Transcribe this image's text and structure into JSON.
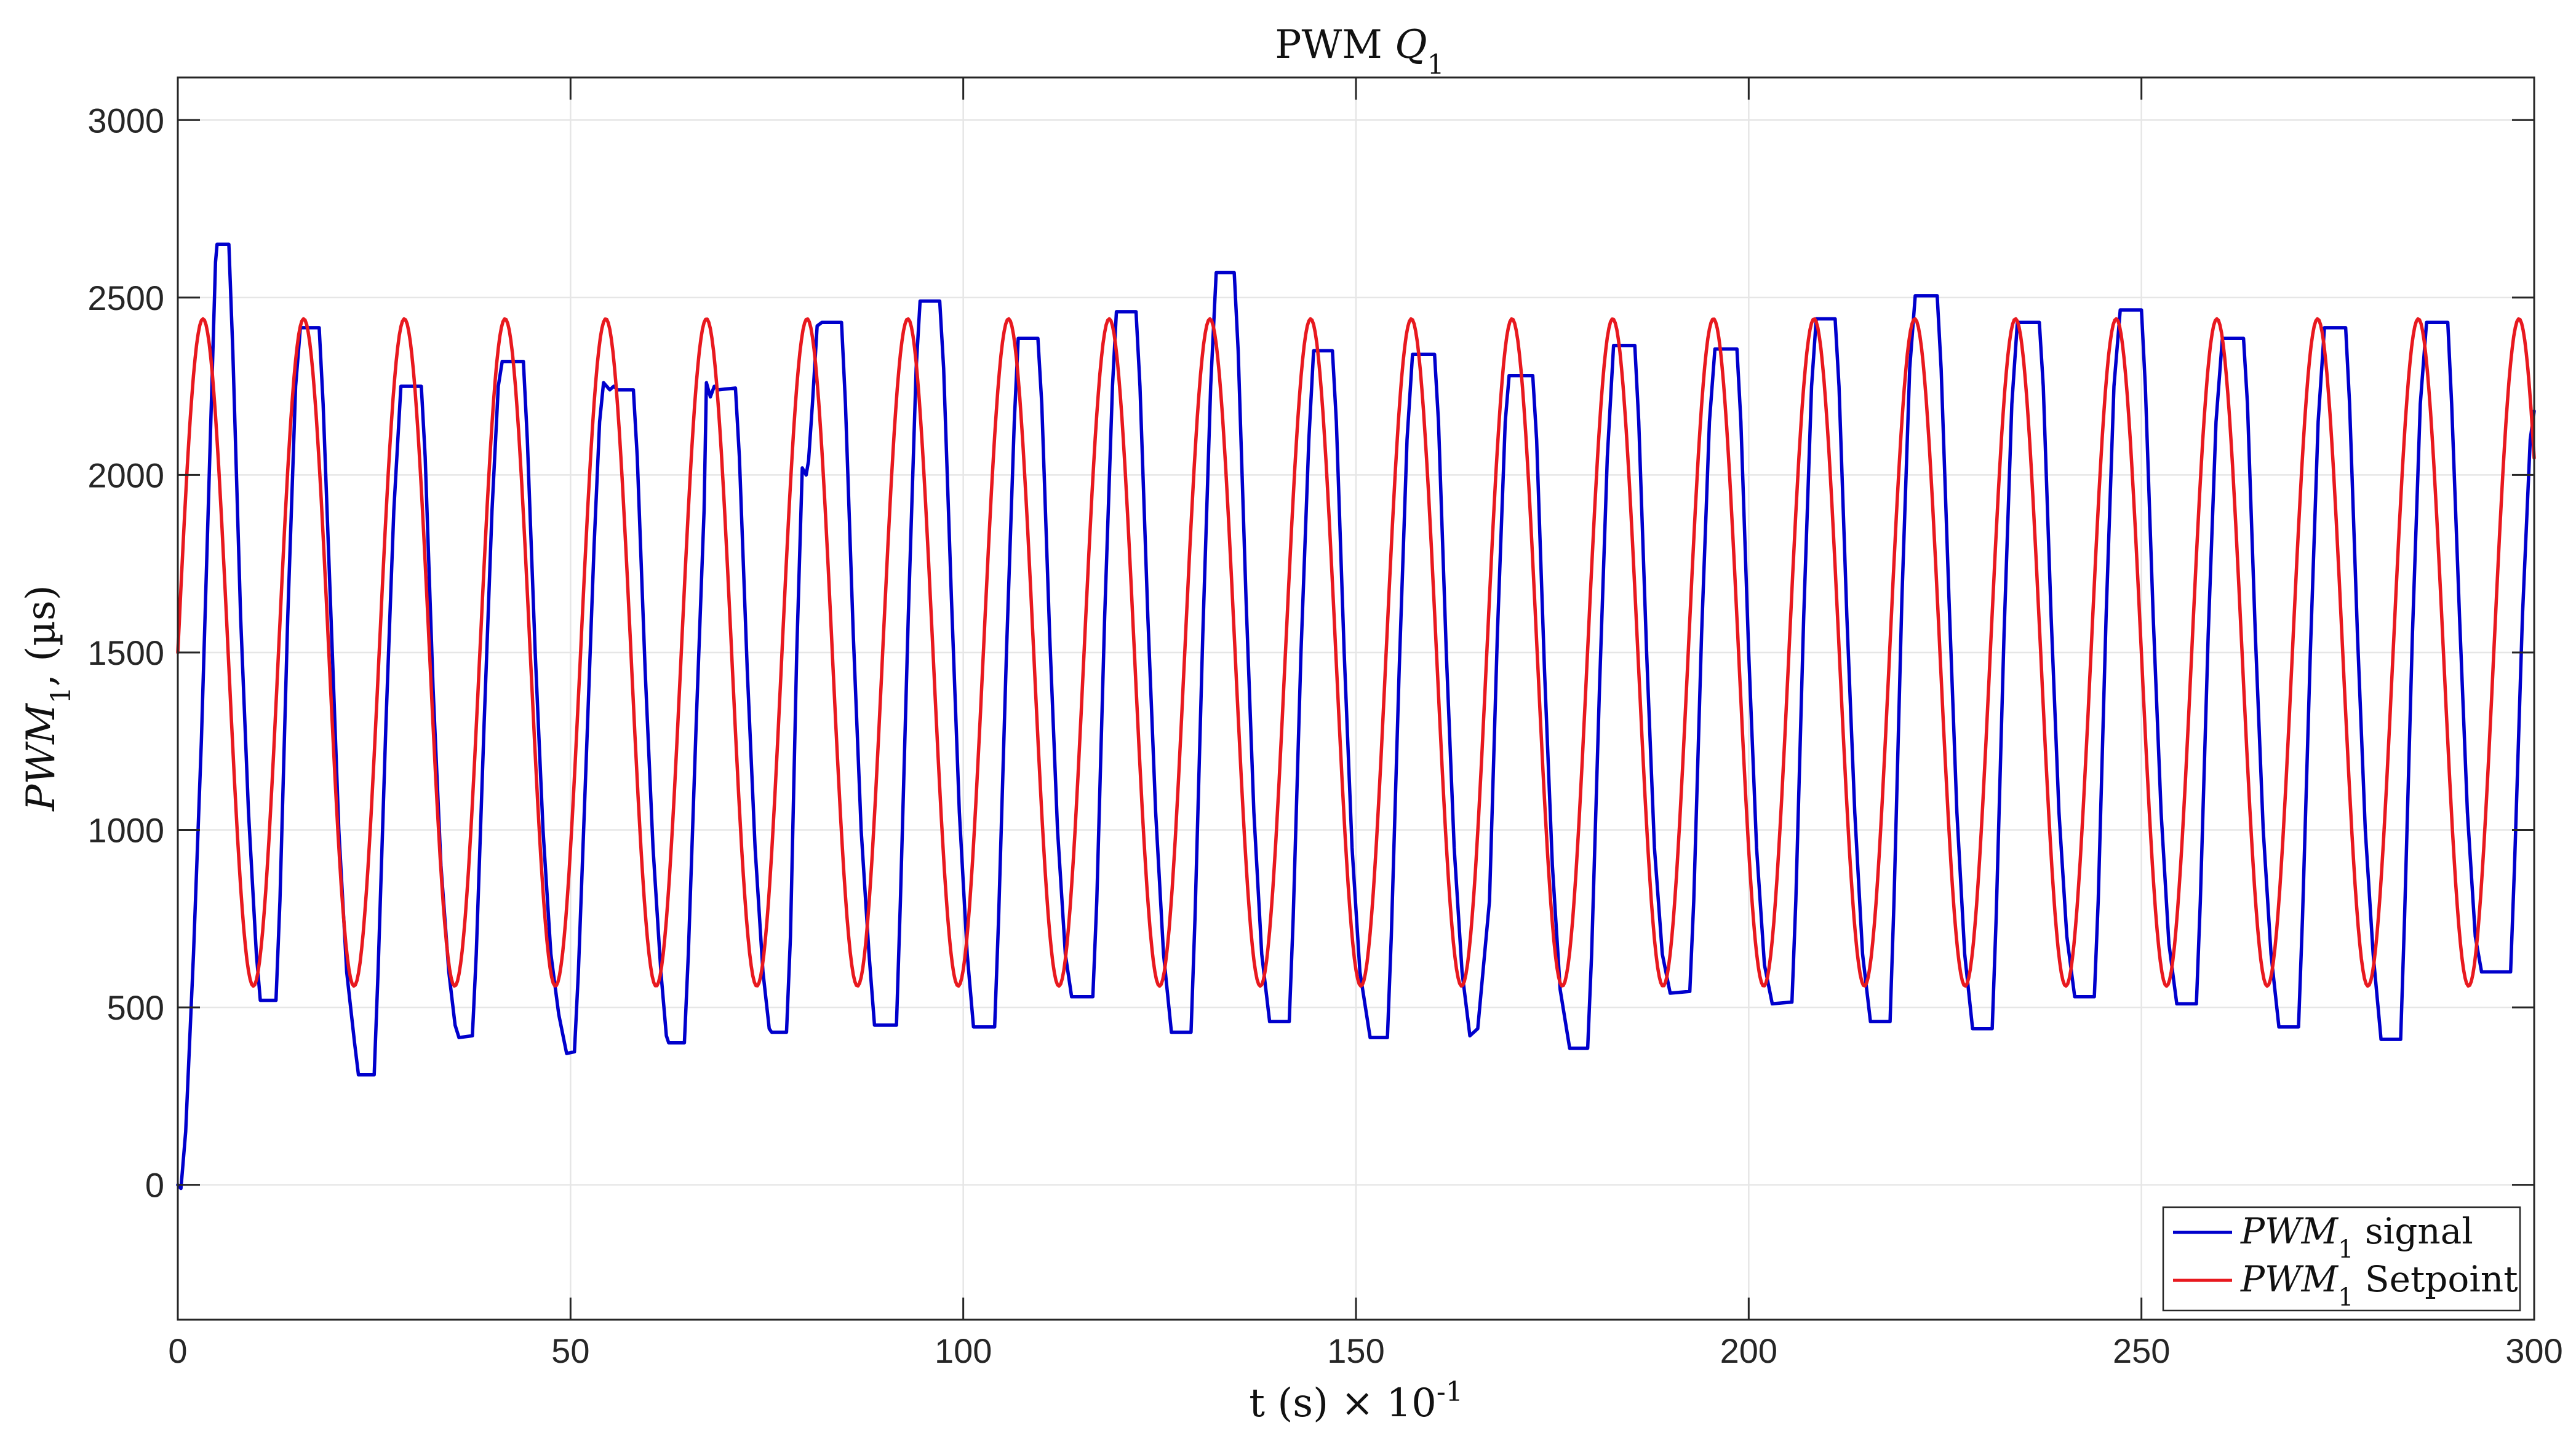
{
  "chart_data": {
    "type": "line",
    "title": "PWM Q",
    "title_parts": {
      "main": "PWM",
      "var": "Q",
      "sub": "1"
    },
    "xlabel": "t (s) × 10",
    "xlabel_parts": {
      "main": "t (s) × 10",
      "exp": "-1"
    },
    "ylabel": "PWM1, (µs)",
    "ylabel_parts": {
      "var": "PWM",
      "sub": "1",
      "unit": ", (µs)"
    },
    "xlim": [
      0,
      300
    ],
    "ylim": [
      -380,
      3120
    ],
    "x_ticks": [
      0,
      50,
      100,
      150,
      200,
      250,
      300
    ],
    "x_tick_labels": [
      "0",
      "50",
      "100",
      "150",
      "200",
      "250",
      "300"
    ],
    "y_ticks": [
      0,
      500,
      1000,
      1500,
      2000,
      2500,
      3000
    ],
    "y_tick_labels": [
      "0",
      "500",
      "1000",
      "1500",
      "2000",
      "2500",
      "3000"
    ],
    "grid": true,
    "legend_position": "bottom-right",
    "series": [
      {
        "name": "PWM1 signal",
        "legend_var": "PWM",
        "legend_sub": "1",
        "legend_text": "signal",
        "color": "#0000cc",
        "points": [
          [
            0,
            0
          ],
          [
            0.4,
            -10
          ],
          [
            1,
            150
          ],
          [
            2,
            650
          ],
          [
            3,
            1250
          ],
          [
            4,
            2000
          ],
          [
            4.8,
            2600
          ],
          [
            5,
            2650
          ],
          [
            6.5,
            2650
          ],
          [
            7,
            2350
          ],
          [
            8,
            1600
          ],
          [
            9,
            1050
          ],
          [
            10,
            650
          ],
          [
            10.5,
            520
          ],
          [
            12.5,
            520
          ],
          [
            13,
            800
          ],
          [
            14,
            1600
          ],
          [
            15,
            2250
          ],
          [
            15.6,
            2415
          ],
          [
            18,
            2415
          ],
          [
            18.5,
            2200
          ],
          [
            19.5,
            1600
          ],
          [
            20.5,
            1000
          ],
          [
            21.5,
            600
          ],
          [
            22.5,
            400
          ],
          [
            23,
            310
          ],
          [
            25,
            310
          ],
          [
            25.5,
            600
          ],
          [
            26.5,
            1300
          ],
          [
            27.5,
            1900
          ],
          [
            28.4,
            2250
          ],
          [
            31,
            2250
          ],
          [
            31.5,
            2050
          ],
          [
            32.5,
            1400
          ],
          [
            33.5,
            900
          ],
          [
            34.5,
            600
          ],
          [
            35.3,
            450
          ],
          [
            35.8,
            415
          ],
          [
            37.5,
            420
          ],
          [
            38,
            650
          ],
          [
            39,
            1300
          ],
          [
            40,
            1900
          ],
          [
            40.8,
            2250
          ],
          [
            41.3,
            2320
          ],
          [
            44,
            2320
          ],
          [
            44.5,
            2100
          ],
          [
            45.5,
            1500
          ],
          [
            46.5,
            1000
          ],
          [
            47.5,
            650
          ],
          [
            48.5,
            480
          ],
          [
            49.5,
            370
          ],
          [
            50.5,
            375
          ],
          [
            51,
            600
          ],
          [
            52,
            1200
          ],
          [
            53,
            1800
          ],
          [
            53.7,
            2150
          ],
          [
            54.2,
            2260
          ],
          [
            55,
            2240
          ],
          [
            55.5,
            2250
          ],
          [
            56,
            2240
          ],
          [
            58,
            2240
          ],
          [
            58.5,
            2050
          ],
          [
            59.5,
            1450
          ],
          [
            60.5,
            950
          ],
          [
            61.5,
            600
          ],
          [
            62.2,
            420
          ],
          [
            62.5,
            400
          ],
          [
            64.5,
            400
          ],
          [
            65,
            650
          ],
          [
            66,
            1300
          ],
          [
            67,
            1900
          ],
          [
            67.3,
            2260
          ],
          [
            67.8,
            2220
          ],
          [
            68.3,
            2250
          ],
          [
            68.8,
            2240
          ],
          [
            71,
            2245
          ],
          [
            71.5,
            2050
          ],
          [
            72.5,
            1450
          ],
          [
            73.5,
            950
          ],
          [
            74.5,
            600
          ],
          [
            75.3,
            440
          ],
          [
            75.6,
            430
          ],
          [
            77.5,
            430
          ],
          [
            78,
            700
          ],
          [
            78.8,
            1500
          ],
          [
            79.5,
            2020
          ],
          [
            80,
            2000
          ],
          [
            80.3,
            2040
          ],
          [
            80.8,
            2200
          ],
          [
            81.4,
            2420
          ],
          [
            82,
            2430
          ],
          [
            84.5,
            2430
          ],
          [
            85,
            2200
          ],
          [
            86,
            1550
          ],
          [
            87,
            1000
          ],
          [
            88,
            650
          ],
          [
            88.7,
            450
          ],
          [
            91.5,
            450
          ],
          [
            92,
            800
          ],
          [
            93,
            1600
          ],
          [
            94,
            2300
          ],
          [
            94.5,
            2490
          ],
          [
            97,
            2490
          ],
          [
            97.5,
            2300
          ],
          [
            98.5,
            1650
          ],
          [
            99.5,
            1050
          ],
          [
            100.5,
            650
          ],
          [
            101.3,
            445
          ],
          [
            104,
            445
          ],
          [
            104.5,
            750
          ],
          [
            105.5,
            1500
          ],
          [
            106.5,
            2150
          ],
          [
            107,
            2385
          ],
          [
            109.5,
            2385
          ],
          [
            110,
            2200
          ],
          [
            111,
            1550
          ],
          [
            112,
            1000
          ],
          [
            113,
            650
          ],
          [
            113.8,
            530
          ],
          [
            116.5,
            530
          ],
          [
            117,
            800
          ],
          [
            118,
            1600
          ],
          [
            119,
            2250
          ],
          [
            119.5,
            2460
          ],
          [
            122,
            2460
          ],
          [
            122.5,
            2250
          ],
          [
            123.5,
            1600
          ],
          [
            124.5,
            1050
          ],
          [
            125.5,
            650
          ],
          [
            126.5,
            430
          ],
          [
            129,
            430
          ],
          [
            129.5,
            750
          ],
          [
            130.5,
            1550
          ],
          [
            131.5,
            2250
          ],
          [
            132.2,
            2570
          ],
          [
            134.5,
            2570
          ],
          [
            135,
            2350
          ],
          [
            136,
            1650
          ],
          [
            137,
            1050
          ],
          [
            138,
            650
          ],
          [
            139,
            460
          ],
          [
            141.5,
            460
          ],
          [
            142,
            750
          ],
          [
            143,
            1500
          ],
          [
            144,
            2100
          ],
          [
            144.6,
            2350
          ],
          [
            147,
            2350
          ],
          [
            147.5,
            2150
          ],
          [
            148.5,
            1500
          ],
          [
            149.5,
            950
          ],
          [
            150.5,
            600
          ],
          [
            151.8,
            415
          ],
          [
            154,
            415
          ],
          [
            154.5,
            700
          ],
          [
            155.5,
            1450
          ],
          [
            156.5,
            2100
          ],
          [
            157.2,
            2340
          ],
          [
            160,
            2340
          ],
          [
            160.5,
            2150
          ],
          [
            161.5,
            1500
          ],
          [
            162.5,
            950
          ],
          [
            163.5,
            600
          ],
          [
            164.5,
            420
          ],
          [
            165.5,
            440
          ],
          [
            167,
            800
          ],
          [
            168,
            1550
          ],
          [
            169,
            2150
          ],
          [
            169.5,
            2280
          ],
          [
            172.5,
            2280
          ],
          [
            173,
            2100
          ],
          [
            174,
            1450
          ],
          [
            175,
            900
          ],
          [
            176,
            550
          ],
          [
            177.2,
            385
          ],
          [
            179.5,
            385
          ],
          [
            180,
            650
          ],
          [
            181,
            1400
          ],
          [
            182,
            2050
          ],
          [
            182.8,
            2365
          ],
          [
            185.5,
            2365
          ],
          [
            186,
            2150
          ],
          [
            187,
            1500
          ],
          [
            188,
            950
          ],
          [
            189,
            650
          ],
          [
            190,
            540
          ],
          [
            192.5,
            545
          ],
          [
            193,
            800
          ],
          [
            194,
            1550
          ],
          [
            195,
            2150
          ],
          [
            195.7,
            2355
          ],
          [
            198.5,
            2355
          ],
          [
            199,
            2150
          ],
          [
            200,
            1500
          ],
          [
            201,
            950
          ],
          [
            202,
            620
          ],
          [
            203,
            510
          ],
          [
            205.5,
            515
          ],
          [
            206,
            800
          ],
          [
            207,
            1600
          ],
          [
            208,
            2250
          ],
          [
            208.6,
            2440
          ],
          [
            211,
            2440
          ],
          [
            211.5,
            2250
          ],
          [
            212.5,
            1600
          ],
          [
            213.5,
            1050
          ],
          [
            214.5,
            650
          ],
          [
            215.5,
            460
          ],
          [
            218,
            460
          ],
          [
            218.5,
            800
          ],
          [
            219.5,
            1650
          ],
          [
            220.5,
            2300
          ],
          [
            221.2,
            2505
          ],
          [
            224,
            2505
          ],
          [
            224.5,
            2300
          ],
          [
            225.5,
            1650
          ],
          [
            226.5,
            1050
          ],
          [
            227.5,
            650
          ],
          [
            228.5,
            440
          ],
          [
            231,
            440
          ],
          [
            231.5,
            750
          ],
          [
            232.5,
            1550
          ],
          [
            233.5,
            2200
          ],
          [
            234.2,
            2430
          ],
          [
            237,
            2430
          ],
          [
            237.5,
            2250
          ],
          [
            238.5,
            1600
          ],
          [
            239.5,
            1050
          ],
          [
            240.5,
            700
          ],
          [
            241.5,
            530
          ],
          [
            244,
            530
          ],
          [
            244.5,
            800
          ],
          [
            245.5,
            1600
          ],
          [
            246.5,
            2250
          ],
          [
            247.3,
            2465
          ],
          [
            250,
            2465
          ],
          [
            250.5,
            2250
          ],
          [
            251.5,
            1600
          ],
          [
            252.5,
            1050
          ],
          [
            253.5,
            680
          ],
          [
            254.5,
            510
          ],
          [
            257,
            510
          ],
          [
            257.5,
            800
          ],
          [
            258.5,
            1550
          ],
          [
            259.5,
            2150
          ],
          [
            260.3,
            2385
          ],
          [
            263,
            2385
          ],
          [
            263.5,
            2200
          ],
          [
            264.5,
            1550
          ],
          [
            265.5,
            1000
          ],
          [
            266.5,
            650
          ],
          [
            267.5,
            445
          ],
          [
            270,
            445
          ],
          [
            270.5,
            750
          ],
          [
            271.5,
            1500
          ],
          [
            272.5,
            2150
          ],
          [
            273.3,
            2415
          ],
          [
            276,
            2415
          ],
          [
            276.5,
            2200
          ],
          [
            277.5,
            1550
          ],
          [
            278.5,
            1000
          ],
          [
            279.5,
            650
          ],
          [
            280.5,
            410
          ],
          [
            283,
            410
          ],
          [
            283.5,
            750
          ],
          [
            284.5,
            1550
          ],
          [
            285.5,
            2200
          ],
          [
            286.3,
            2430
          ],
          [
            289,
            2430
          ],
          [
            289.5,
            2200
          ],
          [
            290.5,
            1600
          ],
          [
            291.5,
            1050
          ],
          [
            292.5,
            700
          ],
          [
            293.3,
            600
          ],
          [
            297,
            600
          ],
          [
            297.5,
            900
          ],
          [
            298.5,
            1600
          ],
          [
            299.5,
            2100
          ],
          [
            300,
            2180
          ]
        ]
      },
      {
        "name": "PWM1 Setpoint",
        "legend_var": "PWM",
        "legend_sub": "1",
        "legend_text": "Setpoint",
        "color": "#e8191f",
        "generator": {
          "kind": "sine",
          "offset": 1500,
          "amplitude": 940,
          "period": 12.82,
          "phase_start_value": 1500,
          "x_start": 0,
          "x_end": 300,
          "step": 0.2
        }
      }
    ]
  }
}
